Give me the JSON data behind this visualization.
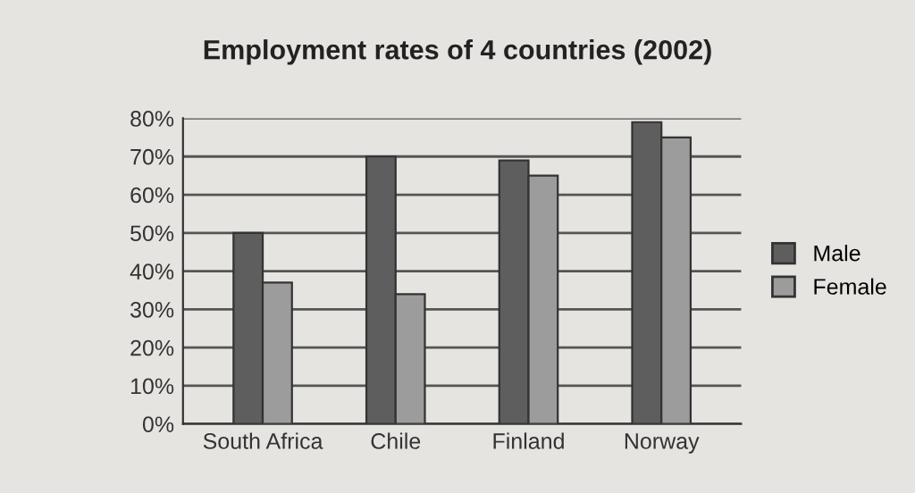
{
  "chart_data": {
    "type": "bar",
    "title": "Employment rates of 4 countries (2002)",
    "categories": [
      "South Africa",
      "Chile",
      "Finland",
      "Norway"
    ],
    "series": [
      {
        "name": "Male",
        "color": "#5e5e5e",
        "values": [
          50,
          70,
          69,
          79
        ]
      },
      {
        "name": "Female",
        "color": "#9c9c9c",
        "values": [
          37,
          34,
          65,
          75
        ]
      }
    ],
    "ylim": [
      0,
      80
    ],
    "yticks": [
      {
        "value": 0,
        "label": "0%"
      },
      {
        "value": 10,
        "label": "10%"
      },
      {
        "value": 20,
        "label": "20%"
      },
      {
        "value": 30,
        "label": "30%"
      },
      {
        "value": 40,
        "label": "40%"
      },
      {
        "value": 50,
        "label": "50%"
      },
      {
        "value": 60,
        "label": "60%"
      },
      {
        "value": 70,
        "label": "70%"
      },
      {
        "value": 80,
        "label": "80%"
      }
    ],
    "grid": "y",
    "legend": "right"
  }
}
